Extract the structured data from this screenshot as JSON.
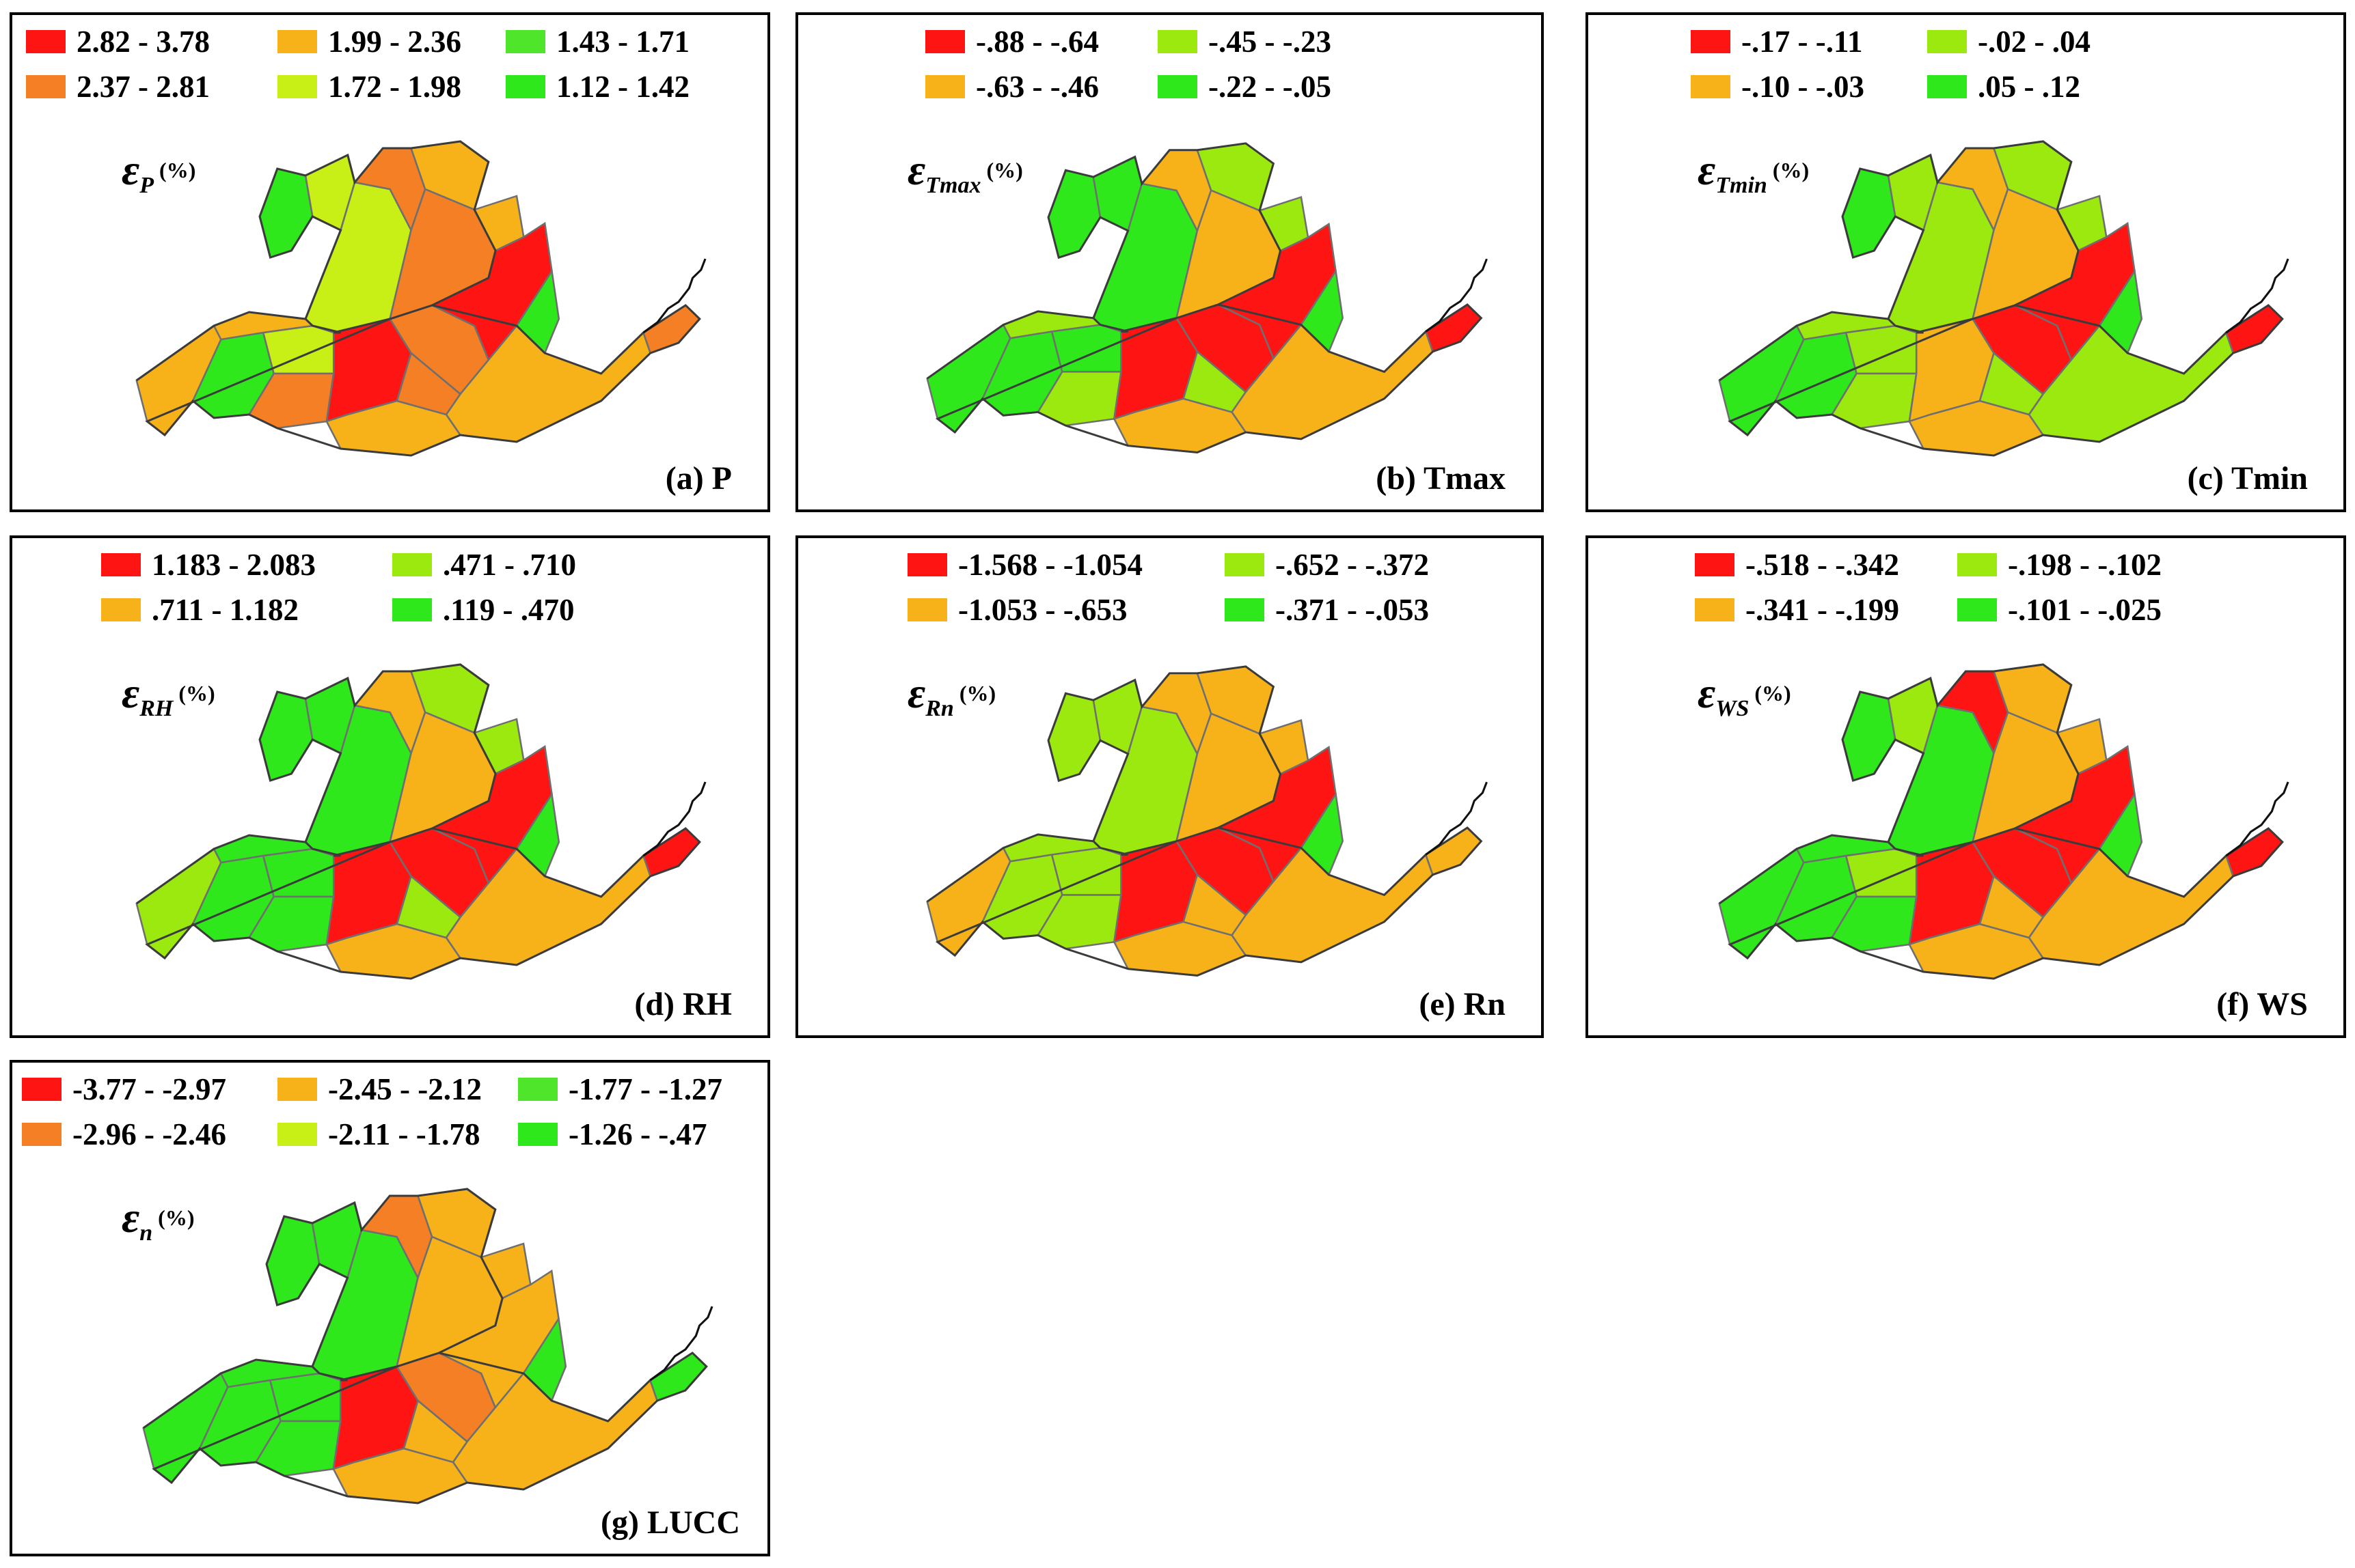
{
  "colors": {
    "red": "#ff1414",
    "dark_orange": "#f57f24",
    "orange": "#f7b21a",
    "yellow_green": "#c8f016",
    "light_green": "#9ce910",
    "green": "#2ee81b"
  },
  "panels": {
    "a": {
      "caption": "(a) P",
      "epsilon": "ε",
      "subscript": "P",
      "unit": "(%)",
      "legend": [
        {
          "range": "2.82 - 3.78",
          "color": "#ff1414"
        },
        {
          "range": "2.37 - 2.81",
          "color": "#f57f24"
        },
        {
          "range": "1.99 - 2.36",
          "color": "#f7b21a"
        },
        {
          "range": "1.72 - 1.98",
          "color": "#c8f016"
        },
        {
          "range": "1.43 - 1.71",
          "color": "#4fe52a"
        },
        {
          "range": "1.12 - 1.42",
          "color": "#2ee81b"
        }
      ],
      "region_classes": [
        "orange",
        "green",
        "yellow_green",
        "orange",
        "dark_orange",
        "red",
        "orange",
        "dark_orange",
        "dark_orange",
        "green",
        "yellow_green",
        "yellow_green",
        "dark_orange",
        "orange",
        "dark_orange",
        "orange",
        "red",
        "green",
        "orange",
        "dark_orange"
      ]
    },
    "b": {
      "caption": "(b) Tmax",
      "epsilon": "ε",
      "subscript": "Tmax",
      "unit": "(%)",
      "legend": [
        {
          "range": "-.88 - -.64",
          "color": "#ff1414"
        },
        {
          "range": "-.63 - -.46",
          "color": "#f7b21a"
        },
        {
          "range": "-.45 - -.23",
          "color": "#9ce910"
        },
        {
          "range": "-.22 - -.05",
          "color": "#2ee81b"
        }
      ],
      "region_classes": [
        "green",
        "green",
        "green",
        "light_green",
        "light_green",
        "red",
        "orange",
        "red",
        "light_green",
        "green",
        "green",
        "green",
        "orange",
        "light_green",
        "orange",
        "light_green",
        "red",
        "green",
        "orange",
        "red"
      ]
    },
    "c": {
      "caption": "(c) Tmin",
      "epsilon": "ε",
      "subscript": "Tmin",
      "unit": "(%)",
      "legend": [
        {
          "range": "-.17 - -.11",
          "color": "#ff1414"
        },
        {
          "range": "-.10 - -.03",
          "color": "#f7b21a"
        },
        {
          "range": "-.02 - .04",
          "color": "#9ce910"
        },
        {
          "range": ".05 - .12",
          "color": "#2ee81b"
        }
      ],
      "region_classes": [
        "green",
        "green",
        "light_green",
        "light_green",
        "light_green",
        "orange",
        "orange",
        "red",
        "light_green",
        "green",
        "light_green",
        "light_green",
        "orange",
        "light_green",
        "orange",
        "light_green",
        "red",
        "green",
        "light_green",
        "red"
      ]
    },
    "d": {
      "caption": "(d) RH",
      "epsilon": "ε",
      "subscript": "RH",
      "unit": "(%)",
      "legend": [
        {
          "range": "1.183 - 2.083",
          "color": "#ff1414"
        },
        {
          "range": ".711 - 1.182",
          "color": "#f7b21a"
        },
        {
          "range": ".471 - .710",
          "color": "#9ce910"
        },
        {
          "range": ".119 - .470",
          "color": "#2ee81b"
        }
      ],
      "region_classes": [
        "light_green",
        "green",
        "green",
        "green",
        "green",
        "red",
        "orange",
        "red",
        "light_green",
        "green",
        "green",
        "green",
        "orange",
        "light_green",
        "orange",
        "light_green",
        "red",
        "green",
        "orange",
        "red"
      ]
    },
    "e": {
      "caption": "(e) Rn",
      "epsilon": "ε",
      "subscript": "Rn",
      "unit": "(%)",
      "legend": [
        {
          "range": "-1.568 - -1.054",
          "color": "#ff1414"
        },
        {
          "range": "-1.053 - -.653",
          "color": "#f7b21a"
        },
        {
          "range": "-.652 - -.372",
          "color": "#9ce910"
        },
        {
          "range": "-.371 - -.053",
          "color": "#2ee81b"
        }
      ],
      "region_classes": [
        "orange",
        "light_green",
        "light_green",
        "light_green",
        "light_green",
        "red",
        "orange",
        "red",
        "orange",
        "light_green",
        "light_green",
        "light_green",
        "orange",
        "orange",
        "orange",
        "orange",
        "red",
        "green",
        "orange",
        "orange"
      ]
    },
    "f": {
      "caption": "(f) WS",
      "epsilon": "ε",
      "subscript": "WS",
      "unit": "(%)",
      "legend": [
        {
          "range": "-.518 - -.342",
          "color": "#ff1414"
        },
        {
          "range": "-.341 - -.199",
          "color": "#f7b21a"
        },
        {
          "range": "-.198 - -.102",
          "color": "#9ce910"
        },
        {
          "range": "-.101 - -.025",
          "color": "#2ee81b"
        }
      ],
      "region_classes": [
        "green",
        "green",
        "light_green",
        "green",
        "green",
        "red",
        "orange",
        "red",
        "orange",
        "green",
        "light_green",
        "green",
        "red",
        "orange",
        "orange",
        "orange",
        "red",
        "green",
        "orange",
        "red"
      ]
    },
    "g": {
      "caption": "(g) LUCC",
      "epsilon": "ε",
      "subscript": "n",
      "unit": "(%)",
      "legend": [
        {
          "range": "-3.77 - -2.97",
          "color": "#ff1414"
        },
        {
          "range": "-2.96 - -2.46",
          "color": "#f57f24"
        },
        {
          "range": "-2.45 - -2.12",
          "color": "#f7b21a"
        },
        {
          "range": "-2.11 - -1.78",
          "color": "#c8f016"
        },
        {
          "range": "-1.77 - -1.27",
          "color": "#4fe52a"
        },
        {
          "range": "-1.26 - -.47",
          "color": "#2ee81b"
        }
      ],
      "region_classes": [
        "green",
        "green",
        "green",
        "green",
        "green",
        "red",
        "orange",
        "dark_orange",
        "orange",
        "green",
        "green",
        "green",
        "dark_orange",
        "orange",
        "orange",
        "orange",
        "orange",
        "green",
        "orange",
        "green"
      ]
    }
  }
}
